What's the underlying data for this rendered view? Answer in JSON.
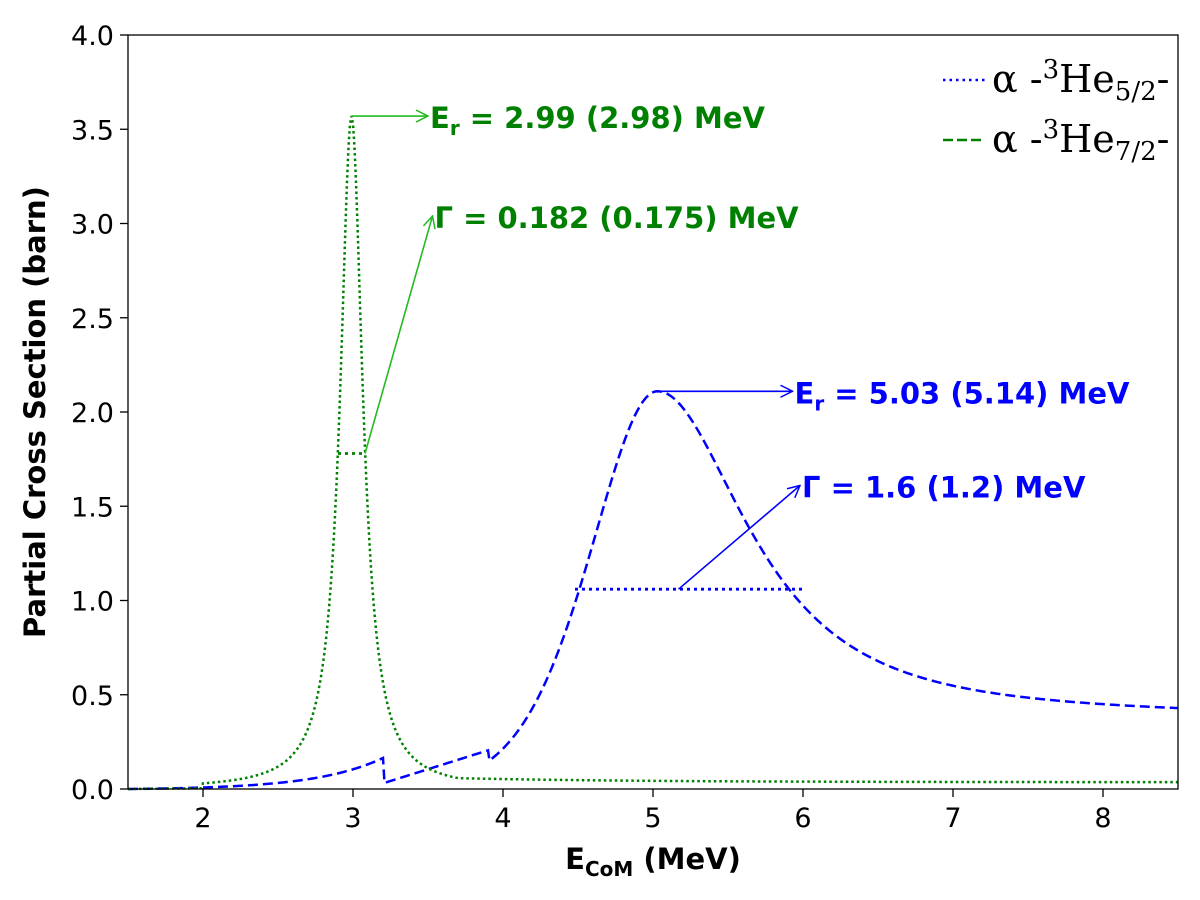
{
  "chart_data": {
    "type": "line",
    "xlabel_main": "E",
    "xlabel_sub": "CoM",
    "xlabel_rest": " (MeV)",
    "ylabel": "Partial Cross Section (barn)",
    "xlim": [
      1.5,
      8.5
    ],
    "ylim": [
      0.0,
      4.0
    ],
    "x_ticks": [
      2,
      3,
      4,
      5,
      6,
      7,
      8
    ],
    "y_ticks": [
      "0.0",
      "0.5",
      "1.0",
      "1.5",
      "2.0",
      "2.5",
      "3.0",
      "3.5",
      "4.0"
    ],
    "grid": false,
    "legend_position": "top-right",
    "series": [
      {
        "name_pre": "α -",
        "name_sup": "3",
        "name_base": "He",
        "name_sub": "5/2",
        "name_post": "-",
        "color": "#0000ff",
        "style": "dashed",
        "resonance_energy": 5.03,
        "width": 1.6,
        "peak": 2.11,
        "x": [
          1.5,
          2.0,
          2.5,
          3.0,
          3.5,
          4.0,
          4.25,
          4.5,
          4.75,
          5.0,
          5.25,
          5.5,
          5.75,
          6.0,
          6.5,
          7.0,
          7.5,
          8.0,
          8.5
        ],
        "y": [
          0.0,
          0.002,
          0.008,
          0.025,
          0.07,
          0.2,
          0.55,
          1.06,
          1.7,
          2.11,
          1.95,
          1.6,
          1.3,
          1.06,
          0.8,
          0.63,
          0.53,
          0.48,
          0.45
        ]
      },
      {
        "name_pre": "α -",
        "name_sup": "3",
        "name_base": "He",
        "name_sub": "7/2",
        "name_post": "-",
        "color": "#008000",
        "style": "dotted",
        "resonance_energy": 2.99,
        "width": 0.182,
        "peak": 3.57,
        "x": [
          1.5,
          2.0,
          2.3,
          2.5,
          2.7,
          2.8,
          2.9,
          2.95,
          2.99,
          3.03,
          3.08,
          3.2,
          3.3,
          3.5,
          4.0,
          5.0,
          6.0,
          7.0,
          8.0,
          8.5
        ],
        "y": [
          0.0,
          0.003,
          0.02,
          0.06,
          0.25,
          0.6,
          1.78,
          2.9,
          3.57,
          2.9,
          1.78,
          0.55,
          0.25,
          0.12,
          0.07,
          0.05,
          0.045,
          0.04,
          0.038,
          0.037
        ]
      }
    ],
    "annotations": [
      {
        "label": "E",
        "label_sub": "r",
        "text": " = 2.99 (2.98) MeV",
        "color": "#008000",
        "arrow_from": [
          2.99,
          3.57
        ],
        "arrow_to": [
          3.5,
          3.57
        ]
      },
      {
        "label": "Γ",
        "label_sub": "",
        "text": " = 0.182 (0.175) MeV",
        "color": "#008000",
        "arrow_from": [
          3.08,
          1.78
        ],
        "arrow_to": [
          3.53,
          3.04
        ]
      },
      {
        "label": "E",
        "label_sub": "r",
        "text": " = 5.03 (5.14) MeV",
        "color": "#0000ff",
        "arrow_from": [
          5.03,
          2.11
        ],
        "arrow_to": [
          5.93,
          2.11
        ]
      },
      {
        "label": "Γ",
        "label_sub": "",
        "text": " = 1.6 (1.2) MeV",
        "color": "#0000ff",
        "arrow_from": [
          5.17,
          1.06
        ],
        "arrow_to": [
          5.98,
          1.61
        ]
      }
    ],
    "half_max_lines": [
      {
        "x1": 2.9,
        "x2": 3.08,
        "y": 1.78,
        "color": "#008000"
      },
      {
        "x1": 4.48,
        "x2": 6.0,
        "y": 1.06,
        "color": "#0000ff"
      }
    ]
  }
}
